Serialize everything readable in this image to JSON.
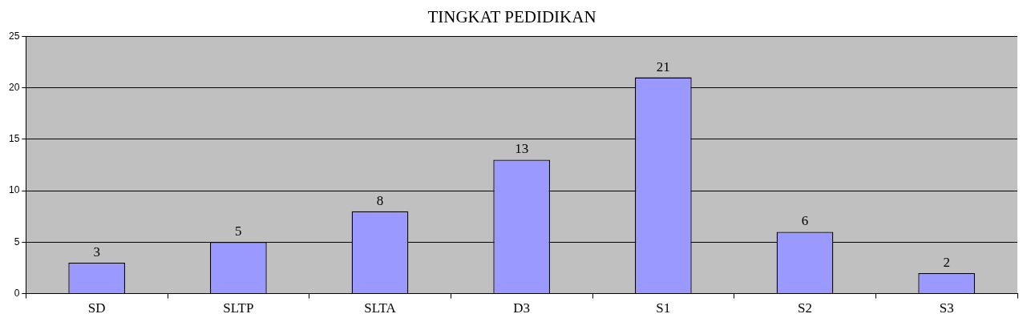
{
  "chart_data": {
    "type": "bar",
    "title": "TINGKAT PEDIDIKAN",
    "categories": [
      "SD",
      "SLTP",
      "SLTA",
      "D3",
      "S1",
      "S2",
      "S3"
    ],
    "values": [
      3,
      5,
      8,
      13,
      21,
      6,
      2
    ],
    "color": "#9999ff",
    "ylim": [
      0,
      25
    ],
    "yticks": [
      0,
      5,
      10,
      15,
      20,
      25
    ],
    "grid": "y",
    "legend": false,
    "data_labels": true
  }
}
